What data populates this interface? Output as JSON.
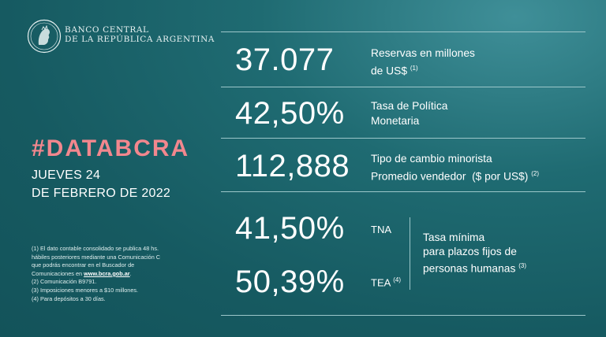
{
  "header": {
    "bank_line1": "BANCO CENTRAL",
    "bank_line2": "DE LA REPÚBLICA ARGENTINA",
    "logo_icon": "bcra-seal-icon"
  },
  "hashtag": "#DATABCRA",
  "date": {
    "line1": "JUEVES 24",
    "line2": "DE FEBRERO DE 2022"
  },
  "notes": {
    "n1_a": "(1) El dato contable consolidado se publica 48 hs.",
    "n1_b": "hábiles posteriores mediante una Comunicación C",
    "n1_c": "que podrás encontrar en el Buscador de",
    "n1_d": "Comunicaciones en ",
    "n1_link": "www.bcra.gob.ar",
    "n1_end": ".",
    "n2": "(2) Comunicación B9791.",
    "n3": "(3) Imposiciones menores a $10 millones.",
    "n4": "(4) Para depósitos a 30 días."
  },
  "stats": {
    "reservas": {
      "value": "37.077",
      "label1": "Reservas en millones",
      "label2": "de US$",
      "note": "(1)"
    },
    "tasa_politica": {
      "value": "42,50%",
      "label1": "Tasa de Política",
      "label2": "Monetaria"
    },
    "tipo_cambio": {
      "value": "112,888",
      "label1": "Tipo de cambio minorista",
      "label2": "Promedio vendedor  ($ por US$)",
      "note": "(2)"
    },
    "tna": {
      "value": "41,50%",
      "label": "TNA"
    },
    "tea": {
      "value": "50,39%",
      "label": "TEA",
      "note": "(4)"
    },
    "plazo_fijo": {
      "line1": "Tasa mínima",
      "line2": "para plazos fijos de",
      "line3": "personas humanas",
      "note": "(3)"
    }
  },
  "colors": {
    "accent": "#f2878e",
    "background": "#1f6b72",
    "divider": "#9cc7ca"
  }
}
